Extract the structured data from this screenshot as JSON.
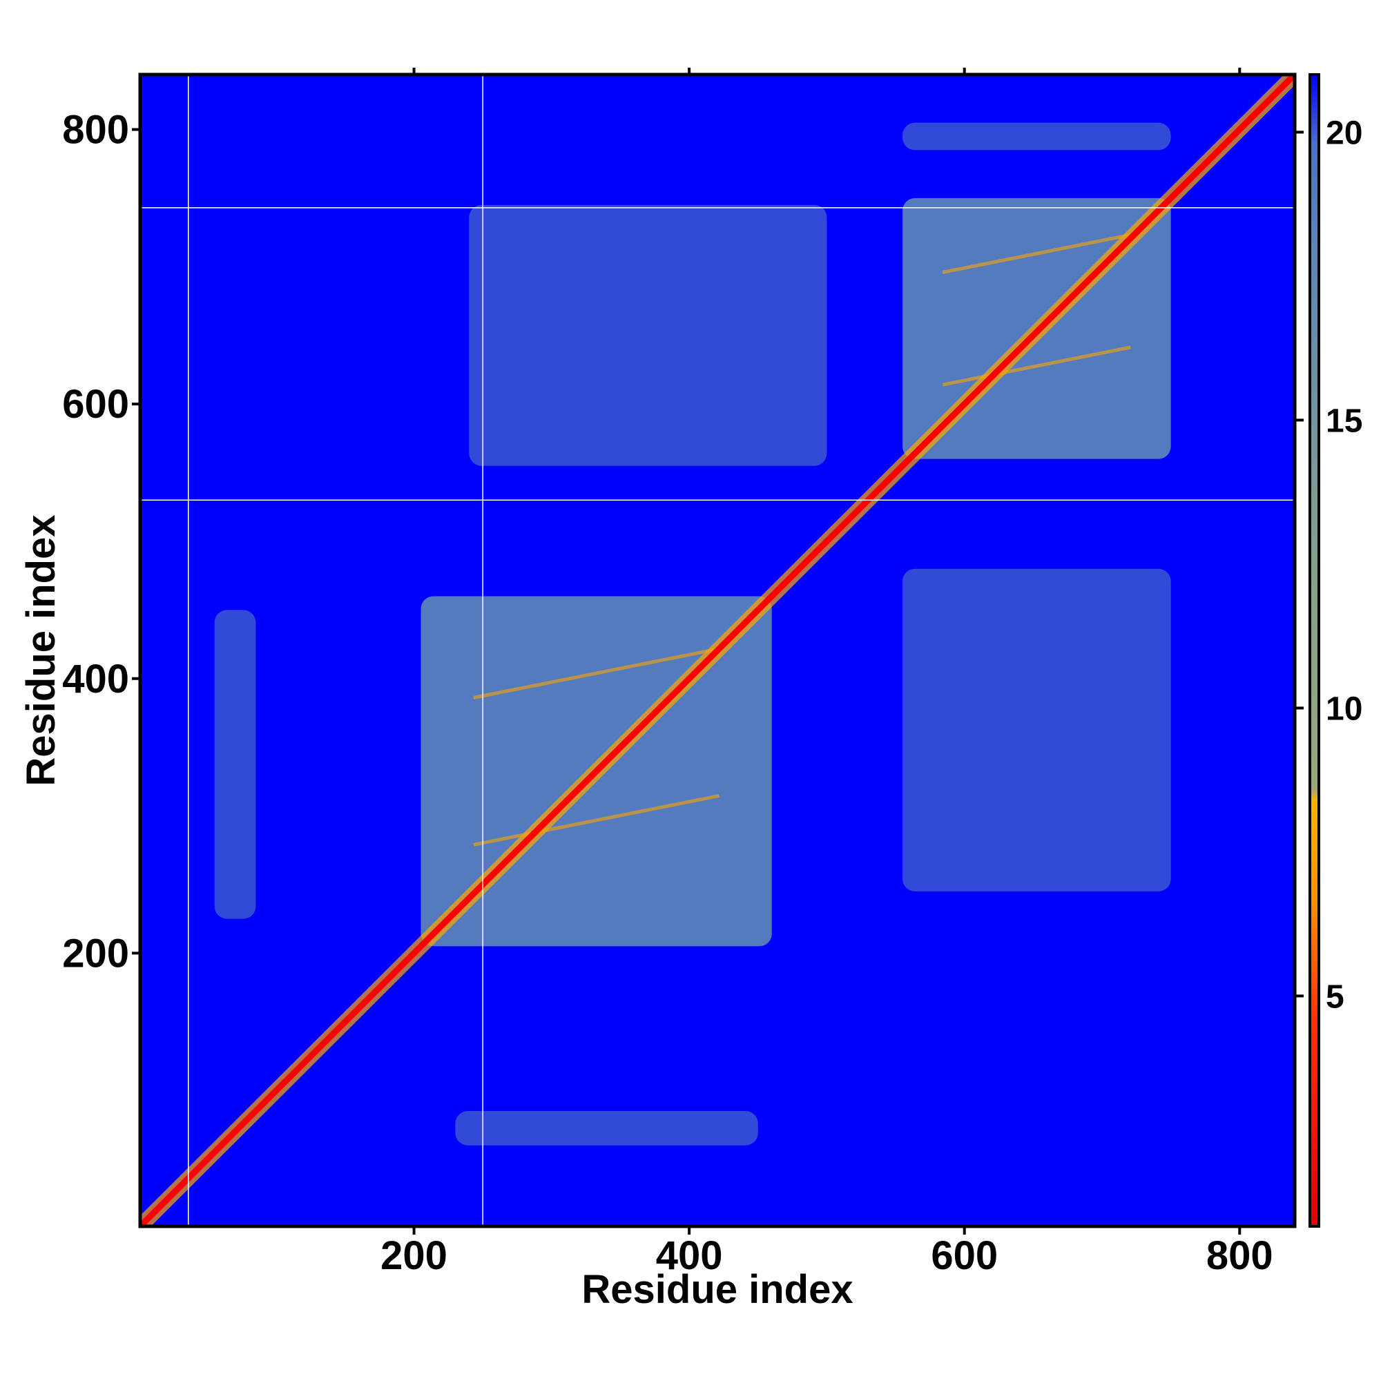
{
  "chart_data": {
    "type": "heatmap",
    "title": "",
    "xlabel": "Residue index",
    "ylabel": "Residue index",
    "xlim": [
      1,
      840
    ],
    "ylim": [
      1,
      840
    ],
    "x_ticks": [
      200,
      400,
      600,
      800
    ],
    "y_ticks": [
      200,
      400,
      600,
      800
    ],
    "grid": false,
    "colorbar": {
      "range": [
        1,
        21
      ],
      "ticks": [
        5,
        10,
        15,
        20
      ],
      "colors": {
        "low": "#ff0000",
        "mid_low": "#ff8c00",
        "mid": "#8fa87a",
        "high": "#4f7fc0",
        "max": "#0000ff"
      }
    },
    "background_value": 21,
    "diagonal": {
      "from": 1,
      "to": 840,
      "value": 2
    },
    "domain_blocks": [
      {
        "x": [
          205,
          460
        ],
        "y": [
          205,
          460
        ],
        "value": 17
      },
      {
        "x": [
          555,
          750
        ],
        "y": [
          560,
          750
        ],
        "value": 17
      }
    ],
    "contact_patches": [
      {
        "x": [
          240,
          500
        ],
        "y": [
          555,
          745
        ],
        "value": 17.5
      },
      {
        "x": [
          555,
          750
        ],
        "y": [
          245,
          480
        ],
        "value": 17.5
      },
      {
        "x": [
          555,
          750
        ],
        "y": [
          785,
          805
        ],
        "value": 17.5
      },
      {
        "x": [
          230,
          450
        ],
        "y": [
          60,
          85
        ],
        "value": 18
      },
      {
        "x": [
          55,
          85
        ],
        "y": [
          225,
          450
        ],
        "value": 18
      }
    ],
    "reference_lines": {
      "vertical": [
        36,
        250
      ],
      "horizontal": [
        530,
        743
      ]
    },
    "colors": {
      "background": "#0000ff",
      "diagonal": "#ff0000",
      "contact": "#5b86b8",
      "near_contact": "#ffa500",
      "frame": "#000000",
      "reference_line": "#ffffff"
    }
  }
}
